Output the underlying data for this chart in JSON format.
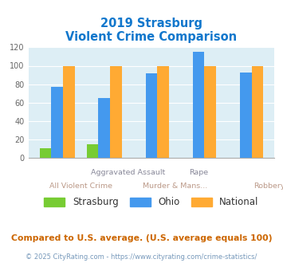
{
  "title_line1": "2019 Strasburg",
  "title_line2": "Violent Crime Comparison",
  "categories": [
    "All Violent Crime",
    "Aggravated Assault",
    "Murder & Mans...",
    "Rape",
    "Robbery"
  ],
  "series": {
    "Strasburg": [
      10,
      15,
      0,
      0,
      0
    ],
    "Ohio": [
      77,
      65,
      92,
      115,
      93
    ],
    "National": [
      100,
      100,
      100,
      100,
      100
    ]
  },
  "colors": {
    "Strasburg": "#77cc33",
    "Ohio": "#4499ee",
    "National": "#ffaa33"
  },
  "ylim": [
    0,
    120
  ],
  "yticks": [
    0,
    20,
    40,
    60,
    80,
    100,
    120
  ],
  "plot_bg": "#ddeef5",
  "title_color": "#1177cc",
  "footer_text": "Compared to U.S. average. (U.S. average equals 100)",
  "footer_color": "#cc6600",
  "copyright_text": "© 2025 CityRating.com - https://www.cityrating.com/crime-statistics/",
  "copyright_color": "#7799bb",
  "bar_width": 0.25,
  "row1_labels": [
    {
      "xi": 1.5,
      "text": "Aggravated Assault"
    },
    {
      "xi": 3.0,
      "text": "Rape"
    }
  ],
  "row2_labels": [
    {
      "xi": 0.5,
      "text": "All Violent Crime"
    },
    {
      "xi": 2.5,
      "text": "Murder & Mans..."
    },
    {
      "xi": 4.5,
      "text": "Robbery"
    }
  ],
  "row1_color": "#888899",
  "row2_color": "#bb9988",
  "legend_labels": [
    "Strasburg",
    "Ohio",
    "National"
  ],
  "legend_color": "#333333"
}
